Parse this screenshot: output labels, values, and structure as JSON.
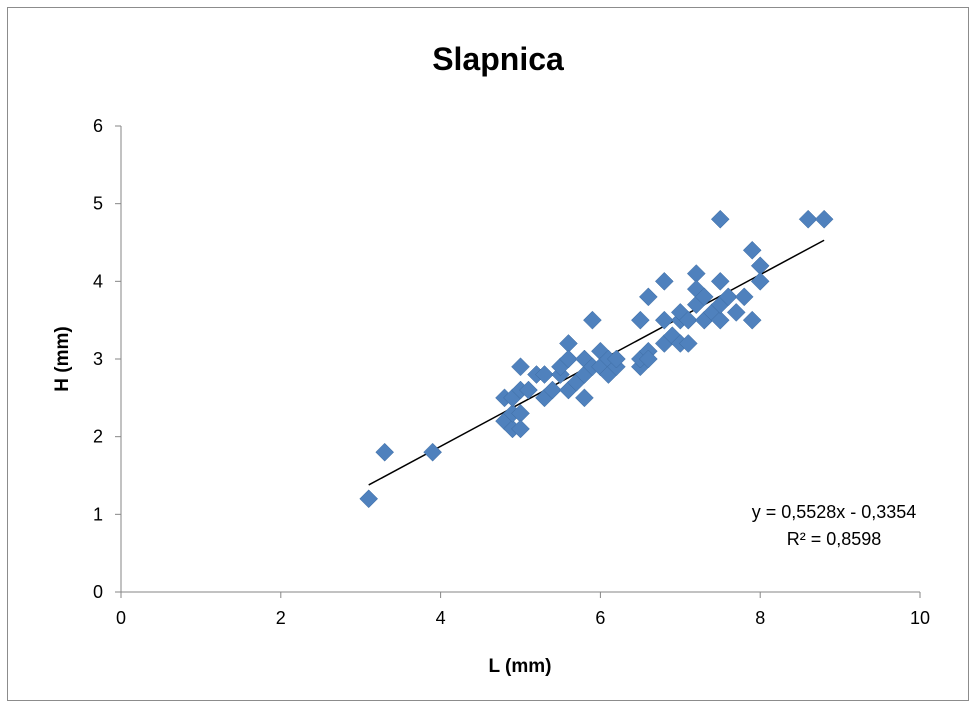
{
  "chart_data": {
    "type": "scatter",
    "title": "Slapnica",
    "xlabel": "L (mm)",
    "ylabel": "H (mm)",
    "xlim": [
      0,
      10
    ],
    "ylim": [
      0,
      6
    ],
    "xticks": [
      "0",
      "2",
      "4",
      "6",
      "8",
      "10"
    ],
    "yticks": [
      "0",
      "1",
      "2",
      "3",
      "4",
      "5",
      "6"
    ],
    "grid": false,
    "marker_color": "#4f81bd",
    "points": [
      [
        3.1,
        1.2
      ],
      [
        3.3,
        1.8
      ],
      [
        3.9,
        1.8
      ],
      [
        4.8,
        2.5
      ],
      [
        4.8,
        2.2
      ],
      [
        4.9,
        2.1
      ],
      [
        4.9,
        2.3
      ],
      [
        4.9,
        2.5
      ],
      [
        5.0,
        2.6
      ],
      [
        5.0,
        2.9
      ],
      [
        5.0,
        2.3
      ],
      [
        5.0,
        2.1
      ],
      [
        5.1,
        2.6
      ],
      [
        5.2,
        2.8
      ],
      [
        5.3,
        2.5
      ],
      [
        5.3,
        2.8
      ],
      [
        5.4,
        2.6
      ],
      [
        5.5,
        2.8
      ],
      [
        5.5,
        2.9
      ],
      [
        5.6,
        3.2
      ],
      [
        5.6,
        3.0
      ],
      [
        5.6,
        2.6
      ],
      [
        5.7,
        2.7
      ],
      [
        5.8,
        2.5
      ],
      [
        5.8,
        2.8
      ],
      [
        5.8,
        3.0
      ],
      [
        5.9,
        3.5
      ],
      [
        5.9,
        2.9
      ],
      [
        6.0,
        3.1
      ],
      [
        6.0,
        2.9
      ],
      [
        6.1,
        3.0
      ],
      [
        6.1,
        2.8
      ],
      [
        6.2,
        2.9
      ],
      [
        6.2,
        3.0
      ],
      [
        6.5,
        3.5
      ],
      [
        6.5,
        2.9
      ],
      [
        6.5,
        3.0
      ],
      [
        6.6,
        3.8
      ],
      [
        6.6,
        3.1
      ],
      [
        6.6,
        3.0
      ],
      [
        6.8,
        4.0
      ],
      [
        6.8,
        3.5
      ],
      [
        6.8,
        3.2
      ],
      [
        6.9,
        3.3
      ],
      [
        7.0,
        3.5
      ],
      [
        7.0,
        3.2
      ],
      [
        7.0,
        3.6
      ],
      [
        7.1,
        3.2
      ],
      [
        7.1,
        3.5
      ],
      [
        7.2,
        4.1
      ],
      [
        7.2,
        3.9
      ],
      [
        7.2,
        3.7
      ],
      [
        7.3,
        3.8
      ],
      [
        7.3,
        3.5
      ],
      [
        7.4,
        3.6
      ],
      [
        7.5,
        4.8
      ],
      [
        7.5,
        4.0
      ],
      [
        7.5,
        3.5
      ],
      [
        7.5,
        3.7
      ],
      [
        7.6,
        3.8
      ],
      [
        7.7,
        3.6
      ],
      [
        7.8,
        3.8
      ],
      [
        7.9,
        4.4
      ],
      [
        7.9,
        3.5
      ],
      [
        8.0,
        4.2
      ],
      [
        8.0,
        4.0
      ],
      [
        8.6,
        4.8
      ],
      [
        8.8,
        4.8
      ]
    ],
    "trendline": {
      "type": "linear",
      "slope": 0.5528,
      "intercept": -0.3354,
      "x_range": [
        3.1,
        8.8
      ],
      "equation": "y = 0,5528x - 0,3354",
      "r_squared": "R² = 0,8598"
    }
  }
}
